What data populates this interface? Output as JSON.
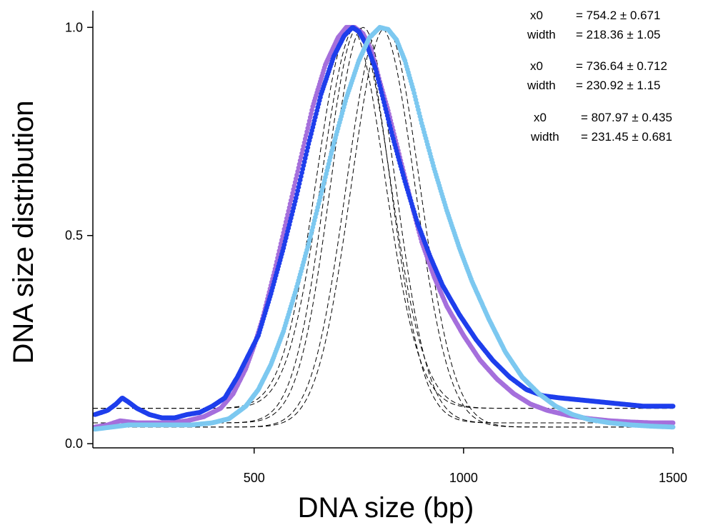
{
  "chart_data": {
    "type": "scatter",
    "xlabel": "DNA size (bp)",
    "ylabel": "DNA size distribution",
    "xlim": [
      115,
      1500
    ],
    "ylim": [
      -0.01,
      1.04
    ],
    "x_ticks": [
      {
        "value": 500,
        "label": "500"
      },
      {
        "value": 1000,
        "label": "1000"
      },
      {
        "value": 1500,
        "label": "1500"
      }
    ],
    "y_ticks": [
      {
        "value": 0.0,
        "label": "0.0"
      },
      {
        "value": 0.5,
        "label": "0.5"
      },
      {
        "value": 1.0,
        "label": "1.0"
      }
    ],
    "grid": false,
    "legend": "none",
    "series": [
      {
        "color": "#a56fdc",
        "points": [
          [
            120,
            0.04
          ],
          [
            150,
            0.045
          ],
          [
            180,
            0.055
          ],
          [
            220,
            0.05
          ],
          [
            260,
            0.05
          ],
          [
            300,
            0.05
          ],
          [
            340,
            0.055
          ],
          [
            380,
            0.065
          ],
          [
            420,
            0.085
          ],
          [
            450,
            0.12
          ],
          [
            480,
            0.18
          ],
          [
            500,
            0.235
          ],
          [
            520,
            0.3
          ],
          [
            550,
            0.42
          ],
          [
            580,
            0.55
          ],
          [
            610,
            0.68
          ],
          [
            640,
            0.81
          ],
          [
            670,
            0.91
          ],
          [
            700,
            0.975
          ],
          [
            720,
            1.0
          ],
          [
            740,
            1.0
          ],
          [
            760,
            0.985
          ],
          [
            780,
            0.945
          ],
          [
            800,
            0.87
          ],
          [
            820,
            0.8
          ],
          [
            840,
            0.72
          ],
          [
            860,
            0.64
          ],
          [
            880,
            0.56
          ],
          [
            900,
            0.485
          ],
          [
            930,
            0.4
          ],
          [
            960,
            0.33
          ],
          [
            1000,
            0.26
          ],
          [
            1040,
            0.2
          ],
          [
            1080,
            0.155
          ],
          [
            1120,
            0.12
          ],
          [
            1160,
            0.095
          ],
          [
            1200,
            0.08
          ],
          [
            1250,
            0.068
          ],
          [
            1300,
            0.06
          ],
          [
            1350,
            0.055
          ],
          [
            1400,
            0.052
          ],
          [
            1450,
            0.05
          ],
          [
            1500,
            0.05
          ]
        ]
      },
      {
        "color": "#1e3eec",
        "points": [
          [
            120,
            0.07
          ],
          [
            150,
            0.08
          ],
          [
            170,
            0.095
          ],
          [
            185,
            0.11
          ],
          [
            200,
            0.1
          ],
          [
            220,
            0.085
          ],
          [
            250,
            0.07
          ],
          [
            280,
            0.062
          ],
          [
            310,
            0.062
          ],
          [
            340,
            0.07
          ],
          [
            370,
            0.075
          ],
          [
            400,
            0.09
          ],
          [
            430,
            0.11
          ],
          [
            460,
            0.16
          ],
          [
            490,
            0.22
          ],
          [
            510,
            0.26
          ],
          [
            540,
            0.36
          ],
          [
            570,
            0.47
          ],
          [
            600,
            0.59
          ],
          [
            630,
            0.72
          ],
          [
            660,
            0.84
          ],
          [
            690,
            0.93
          ],
          [
            715,
            0.98
          ],
          [
            735,
            1.0
          ],
          [
            750,
            0.99
          ],
          [
            770,
            0.955
          ],
          [
            790,
            0.9
          ],
          [
            810,
            0.82
          ],
          [
            830,
            0.74
          ],
          [
            860,
            0.63
          ],
          [
            890,
            0.53
          ],
          [
            920,
            0.45
          ],
          [
            950,
            0.38
          ],
          [
            990,
            0.31
          ],
          [
            1030,
            0.25
          ],
          [
            1070,
            0.2
          ],
          [
            1110,
            0.16
          ],
          [
            1150,
            0.13
          ],
          [
            1190,
            0.115
          ],
          [
            1230,
            0.11
          ],
          [
            1280,
            0.105
          ],
          [
            1330,
            0.1
          ],
          [
            1380,
            0.095
          ],
          [
            1430,
            0.09
          ],
          [
            1500,
            0.09
          ]
        ]
      },
      {
        "color": "#7cc8f0",
        "points": [
          [
            120,
            0.035
          ],
          [
            160,
            0.04
          ],
          [
            200,
            0.045
          ],
          [
            250,
            0.045
          ],
          [
            300,
            0.045
          ],
          [
            350,
            0.045
          ],
          [
            400,
            0.05
          ],
          [
            440,
            0.06
          ],
          [
            480,
            0.09
          ],
          [
            510,
            0.13
          ],
          [
            540,
            0.19
          ],
          [
            570,
            0.27
          ],
          [
            600,
            0.37
          ],
          [
            630,
            0.48
          ],
          [
            660,
            0.6
          ],
          [
            690,
            0.72
          ],
          [
            720,
            0.83
          ],
          [
            750,
            0.92
          ],
          [
            775,
            0.975
          ],
          [
            800,
            1.0
          ],
          [
            820,
            0.995
          ],
          [
            840,
            0.97
          ],
          [
            860,
            0.92
          ],
          [
            880,
            0.85
          ],
          [
            900,
            0.77
          ],
          [
            930,
            0.66
          ],
          [
            960,
            0.56
          ],
          [
            990,
            0.47
          ],
          [
            1020,
            0.39
          ],
          [
            1060,
            0.3
          ],
          [
            1100,
            0.22
          ],
          [
            1140,
            0.16
          ],
          [
            1180,
            0.12
          ],
          [
            1220,
            0.09
          ],
          [
            1260,
            0.07
          ],
          [
            1300,
            0.058
          ],
          [
            1350,
            0.05
          ],
          [
            1400,
            0.045
          ],
          [
            1450,
            0.042
          ],
          [
            1500,
            0.04
          ]
        ]
      }
    ],
    "fits": [
      {
        "x0": 754.2,
        "width": 218.36
      },
      {
        "x0": 736.64,
        "width": 230.92
      },
      {
        "x0": 807.97,
        "width": 231.45
      }
    ],
    "annotations": [
      {
        "x0_label": "x0",
        "x0_value": "= 754.2 ± 0.671",
        "width_label": "width",
        "width_value": "= 218.36 ± 1.05"
      },
      {
        "x0_label": "x0",
        "x0_value": "= 736.64 ± 0.712",
        "width_label": "width",
        "width_value": "= 230.92 ± 1.15"
      },
      {
        "x0_label": "x0",
        "x0_value": "= 807.97 ± 0.435",
        "width_label": "width",
        "width_value": "= 231.45 ± 0.681"
      }
    ]
  }
}
